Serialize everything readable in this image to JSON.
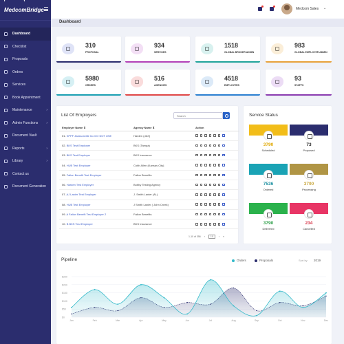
{
  "brand": {
    "name": "MedcomBridge"
  },
  "sidebar": {
    "items": [
      {
        "label": "Dashboard",
        "icon": "dashboard-icon",
        "active": true
      },
      {
        "label": "Checklist",
        "icon": "checklist-icon"
      },
      {
        "label": "Proposals",
        "icon": "proposals-icon"
      },
      {
        "label": "Orders",
        "icon": "orders-icon"
      },
      {
        "label": "Services",
        "icon": "services-icon"
      },
      {
        "label": "Book Appointment",
        "icon": "calendar-icon"
      },
      {
        "label": "Maintenance",
        "icon": "wrench-icon",
        "chevron": true
      },
      {
        "label": "Admin Functions",
        "icon": "admin-icon",
        "chevron": true
      },
      {
        "label": "Document Vault",
        "icon": "vault-icon"
      },
      {
        "label": "Reports",
        "icon": "reports-icon",
        "chevron": true
      },
      {
        "label": "Library",
        "icon": "library-icon",
        "chevron": true
      },
      {
        "label": "Contact us",
        "icon": "contact-icon"
      },
      {
        "label": "Document Generation",
        "icon": "document-icon"
      }
    ]
  },
  "header": {
    "user_name": "Medcom Sales",
    "chevron": "⌄"
  },
  "page": {
    "title": "Dashboard"
  },
  "stats": [
    {
      "value": "310",
      "label": "Proposal",
      "color": "#2b2d6e",
      "blob": "#dfe3f7"
    },
    {
      "value": "934",
      "label": "Services",
      "color": "#b23fb8",
      "blob": "#f3dff5"
    },
    {
      "value": "1518",
      "label": "Global Broker Admin",
      "color": "#1fa39a",
      "blob": "#d8f1ef"
    },
    {
      "value": "983",
      "label": "Global Employer Admin",
      "color": "#e8a23a",
      "blob": "#fbeed8"
    },
    {
      "value": "5980",
      "label": "Orders",
      "color": "#1a9fb2",
      "blob": "#d6f0f4"
    },
    {
      "value": "516",
      "label": "Agencies",
      "color": "#e04646",
      "blob": "#fadcdc"
    },
    {
      "value": "4518",
      "label": "Employers",
      "color": "#2a7fd1",
      "blob": "#dceaf8"
    },
    {
      "value": "93",
      "label": "Staffs",
      "color": "#8a3bb0",
      "blob": "#ecdcf5"
    }
  ],
  "employers": {
    "title": "List Of Employers",
    "search_placeholder": "Search",
    "columns": {
      "name": "Employer Name",
      "agency": "Agency Name",
      "action": "Action",
      "sort": "⬍"
    },
    "rows": [
      {
        "no": "01.",
        "name": "KPPF Jacksonville Inc DO NOT USE",
        "agency": "Harden (JAX)"
      },
      {
        "no": "02.",
        "name": "BKS Test Employer",
        "agency": "BKS (Tampa)"
      },
      {
        "no": "03.",
        "name": "BKS Test Employer",
        "agency": "BKS Insurance"
      },
      {
        "no": "04.",
        "name": "HUB Test Employer",
        "agency": "Cobb Allen (Kansas City)"
      },
      {
        "no": "05.",
        "name": "Fallon Benefit Test Employer",
        "agency": "Fallon Benefits"
      },
      {
        "no": "06.",
        "name": "Harden Test Employer",
        "agency": "Bobby Testing Agency"
      },
      {
        "no": "07.",
        "name": "AJ Lanier Test Employer",
        "agency": "J. Smith Lanier (AL)"
      },
      {
        "no": "08.",
        "name": "HUB Test Employer",
        "agency": "J Smith Lanier ( John Creek)"
      },
      {
        "no": "09.",
        "name": "A Fallon Benefit Test Employer 2",
        "agency": "Fallon Benefits"
      },
      {
        "no": "10.",
        "name": "B BKS Test Employer",
        "agency": "BKS Insurance"
      }
    ],
    "pager": {
      "info": "1-10 of 356",
      "prev": "‹",
      "next": "›",
      "current": "10",
      "last": "»"
    }
  },
  "service_status": {
    "title": "Service Status",
    "items": [
      {
        "value": "3790",
        "label": "Scheduled",
        "color": "#f2bd19",
        "num_color": "#e0a800",
        "icon": "calendar-check-icon"
      },
      {
        "value": "73",
        "label": "Proposed",
        "color": "#2b2d6e",
        "num_color": "#222",
        "icon": "clipboard-icon"
      },
      {
        "value": "7536",
        "label": "Ordered",
        "color": "#1aa3b5",
        "num_color": "#1a8fa0",
        "icon": "cart-icon"
      },
      {
        "value": "3790",
        "label": "Processing",
        "color": "#b09545",
        "num_color": "#c9a840",
        "icon": "refresh-icon"
      },
      {
        "value": "3790",
        "label": "Delivered",
        "color": "#2bb24c",
        "num_color": "#2b9e46",
        "icon": "wifi-icon"
      },
      {
        "value": "234",
        "label": "Cancelled",
        "color": "#e83565",
        "num_color": "#d83a4c",
        "icon": "cancel-icon"
      }
    ]
  },
  "pipeline": {
    "title": "Pipeline",
    "legend": {
      "orders": "Orders",
      "proposals": "Proposals"
    },
    "sort_label": "Sort by",
    "year": "2019",
    "colors": {
      "orders": "#32b9c9",
      "proposals": "#2b2d6e"
    }
  },
  "chart_data": {
    "type": "area",
    "categories": [
      "Jan",
      "Feb",
      "Mar",
      "Apr",
      "May",
      "Jun",
      "Jul",
      "Aug",
      "Sep",
      "Oct",
      "Nov",
      "Dec"
    ],
    "yticks": [
      "$0",
      "$50",
      "$100",
      "$150",
      "$200",
      "$250"
    ],
    "ylim": [
      0,
      250
    ],
    "series": [
      {
        "name": "Orders",
        "values": [
          60,
          170,
          80,
          200,
          120,
          20,
          230,
          70,
          10,
          160,
          60,
          150
        ]
      },
      {
        "name": "Proposals",
        "values": [
          20,
          60,
          40,
          120,
          60,
          90,
          80,
          180,
          40,
          90,
          70,
          130
        ]
      }
    ],
    "legend": "top-right",
    "grid": true
  }
}
